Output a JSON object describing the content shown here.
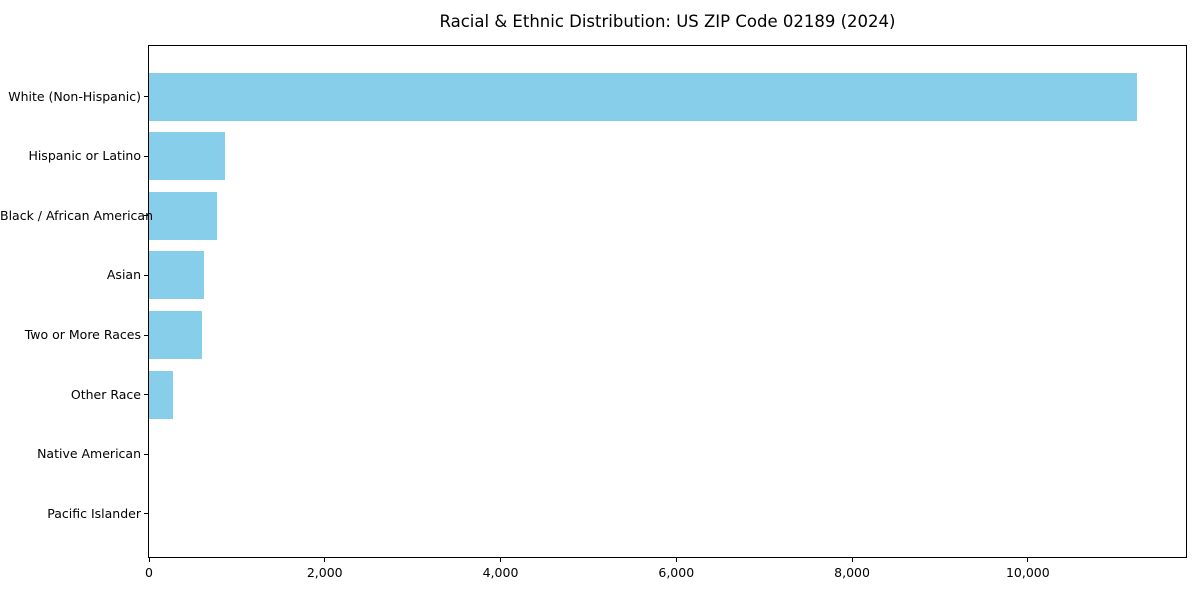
{
  "figure": {
    "background": "#ffffff",
    "frame_color": "#000000",
    "text_color": "#000000"
  },
  "chart_data": {
    "type": "bar",
    "orientation": "horizontal",
    "title": "Racial & Ethnic Distribution: US ZIP Code 02189 (2024)",
    "xlabel": "",
    "ylabel": "",
    "grid": false,
    "legend": null,
    "bar_color": "#87CEEB",
    "categories": [
      "White (Non-Hispanic)",
      "Hispanic or Latino",
      "Black / African American",
      "Asian",
      "Two or More Races",
      "Other Race",
      "Native American",
      "Pacific Islander"
    ],
    "values": [
      11245,
      860,
      775,
      630,
      600,
      275,
      0,
      0
    ],
    "xlim": [
      0,
      11800
    ],
    "x_ticks": [
      {
        "value": 0,
        "label": "0"
      },
      {
        "value": 2000,
        "label": "2,000"
      },
      {
        "value": 4000,
        "label": "4,000"
      },
      {
        "value": 6000,
        "label": "6,000"
      },
      {
        "value": 8000,
        "label": "8,000"
      },
      {
        "value": 10000,
        "label": "10,000"
      }
    ]
  }
}
